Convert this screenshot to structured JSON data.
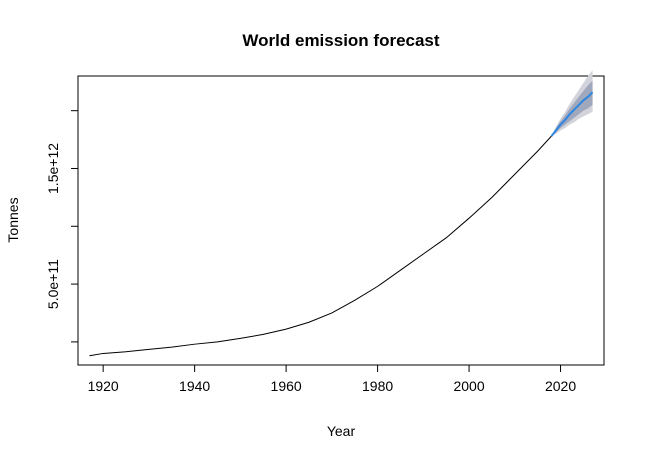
{
  "chart_data": {
    "type": "line",
    "title": "World emission forecast",
    "xlabel": "Year",
    "ylabel": "Tonnes",
    "xlim": [
      1914.5,
      2029.5
    ],
    "ylim": [
      -200000000000.0,
      2300000000000.0
    ],
    "x_ticks": [
      1920,
      1940,
      1960,
      1980,
      2000,
      2020
    ],
    "x_tick_labels": [
      "1920",
      "1940",
      "1960",
      "1980",
      "2000",
      "2020"
    ],
    "y_ticks": [
      0,
      500000000000.0,
      1000000000000.0,
      1500000000000.0,
      2000000000000.0
    ],
    "y_tick_labels": [
      "",
      "5.0e+11",
      "",
      "1.5e+12",
      ""
    ],
    "grid": false,
    "series": [
      {
        "role": "history",
        "color": "#000000",
        "x": [
          1917,
          1920,
          1925,
          1930,
          1935,
          1940,
          1945,
          1950,
          1955,
          1960,
          1965,
          1970,
          1975,
          1980,
          1985,
          1990,
          1995,
          2000,
          2005,
          2010,
          2015,
          2018
        ],
        "y": [
          -120000000000.0,
          -100000000000.0,
          -85000000000.0,
          -65000000000.0,
          -45000000000.0,
          -20000000000.0,
          0,
          30000000000.0,
          65000000000.0,
          110000000000.0,
          170000000000.0,
          250000000000.0,
          360000000000.0,
          480000000000.0,
          620000000000.0,
          760000000000.0,
          900000000000.0,
          1070000000000.0,
          1250000000000.0,
          1450000000000.0,
          1650000000000.0,
          1780000000000.0
        ]
      },
      {
        "role": "forecast",
        "color": "#2E86DE",
        "x": [
          2018,
          2019,
          2020,
          2021,
          2022,
          2023,
          2024,
          2025,
          2026,
          2027
        ],
        "y": [
          1780000000000.0,
          1830000000000.0,
          1880000000000.0,
          1920000000000.0,
          1970000000000.0,
          2010000000000.0,
          2050000000000.0,
          2090000000000.0,
          2120000000000.0,
          2160000000000.0
        ],
        "band80_lower": [
          1780000000000.0,
          1810000000000.0,
          1850000000000.0,
          1880000000000.0,
          1910000000000.0,
          1940000000000.0,
          1970000000000.0,
          2000000000000.0,
          2020000000000.0,
          2050000000000.0
        ],
        "band80_upper": [
          1780000000000.0,
          1850000000000.0,
          1910000000000.0,
          1960000000000.0,
          2020000000000.0,
          2070000000000.0,
          2120000000000.0,
          2170000000000.0,
          2220000000000.0,
          2260000000000.0
        ],
        "band95_lower": [
          1780000000000.0,
          1800000000000.0,
          1830000000000.0,
          1850000000000.0,
          1880000000000.0,
          1900000000000.0,
          1930000000000.0,
          1950000000000.0,
          1970000000000.0,
          1990000000000.0
        ],
        "band95_upper": [
          1780000000000.0,
          1860000000000.0,
          1930000000000.0,
          1990000000000.0,
          2060000000000.0,
          2120000000000.0,
          2180000000000.0,
          2240000000000.0,
          2300000000000.0,
          2350000000000.0
        ],
        "band80_color": "#A0A8BE",
        "band95_color": "#D3D3DB"
      }
    ]
  }
}
